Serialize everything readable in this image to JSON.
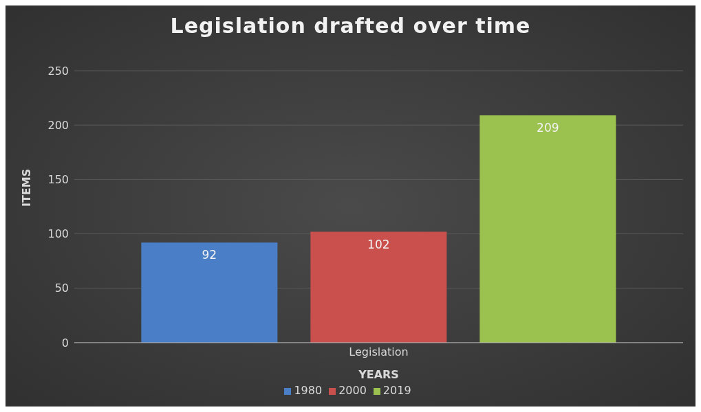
{
  "chart_data": {
    "type": "bar",
    "title": "Legislation drafted over time",
    "xlabel": "YEARS",
    "ylabel": "ITEMS",
    "categories": [
      "Legislation"
    ],
    "series": [
      {
        "name": "1980",
        "color": "#4a7fc8",
        "values": [
          92
        ]
      },
      {
        "name": "2000",
        "color": "#c9504d",
        "values": [
          102
        ]
      },
      {
        "name": "2019",
        "color": "#9bc24f",
        "values": [
          209
        ]
      }
    ],
    "ylim": [
      0,
      250
    ],
    "yticks": [
      0,
      50,
      100,
      150,
      200,
      250
    ],
    "grid": "y",
    "legend": "bottom",
    "data_labels": true
  }
}
